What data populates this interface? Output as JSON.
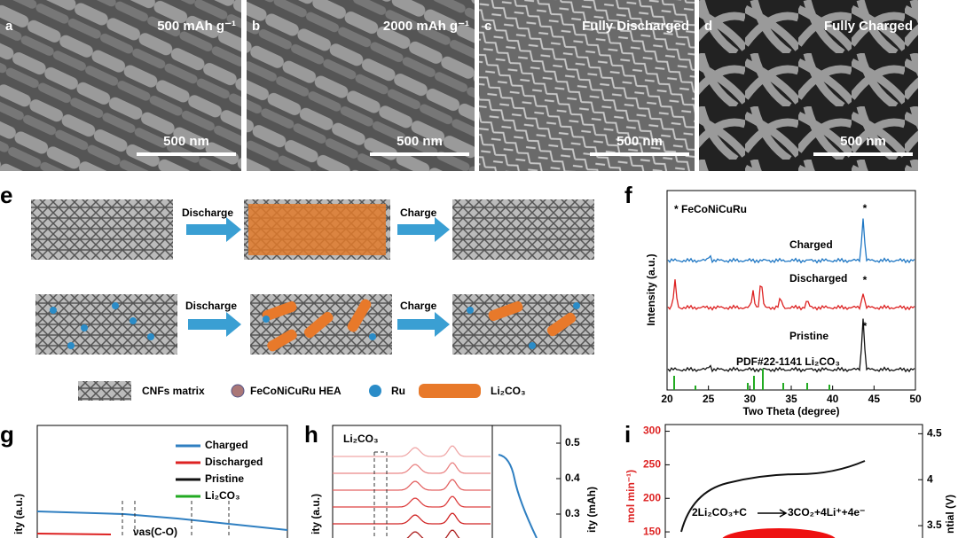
{
  "sem_panels": [
    {
      "letter": "a",
      "label": "500 mAh g⁻¹",
      "scale": "500 nm"
    },
    {
      "letter": "b",
      "label": "2000 mAh g⁻¹",
      "scale": "500 nm"
    },
    {
      "letter": "c",
      "label": "Fully Discharged",
      "scale": "500 nm"
    },
    {
      "letter": "d",
      "label": "Fully Charged",
      "scale": "500 nm"
    }
  ],
  "panel_e": {
    "letter": "e",
    "steps": [
      "Discharge",
      "Charge",
      "Discharge",
      "Charge"
    ],
    "legend": [
      "CNFs matrix",
      "FeCoNiCuRu HEA",
      "Ru",
      "Li₂CO₃"
    ]
  },
  "panel_f": {
    "letter": "f",
    "annotation": "* FeCoNiCuRu",
    "traces": [
      "Charged",
      "Discharged",
      "Pristine",
      "PDF#22-1141 Li₂CO₃"
    ],
    "peak_marker": "*",
    "ylabel": "Intensity (a.u.)",
    "xlabel": "Two Theta (degree)",
    "xlim": [
      20,
      50
    ],
    "xticks": [
      20,
      25,
      30,
      35,
      40,
      45,
      50
    ]
  },
  "panel_g": {
    "letter": "g",
    "legend": [
      "Charged",
      "Discharged",
      "Pristine",
      "Li₂CO₃"
    ],
    "annotation": "νas(C-O)",
    "ylabel": "ity (a.u.)"
  },
  "panel_h": {
    "letter": "h",
    "annotation": "Li₂CO₃",
    "ylabel": "ity (a.u.)",
    "y2label": "ity (mAh)",
    "y2lim": [
      0.2,
      0.55
    ],
    "y2ticks": [
      0.5,
      0.4,
      0.3
    ]
  },
  "panel_i": {
    "letter": "i",
    "reaction_left": "2Li₂CO₃+C",
    "reaction_right": "3CO₂+4Li⁺+4e⁻",
    "ylabel": "mol min⁻¹)",
    "y2label": "ntial (V)",
    "ylim": [
      125,
      310
    ],
    "yticks": [
      300,
      250,
      200,
      150
    ],
    "y2lim": [
      3.25,
      4.6
    ],
    "y2ticks": [
      4.5,
      4.0,
      3.5
    ]
  }
}
